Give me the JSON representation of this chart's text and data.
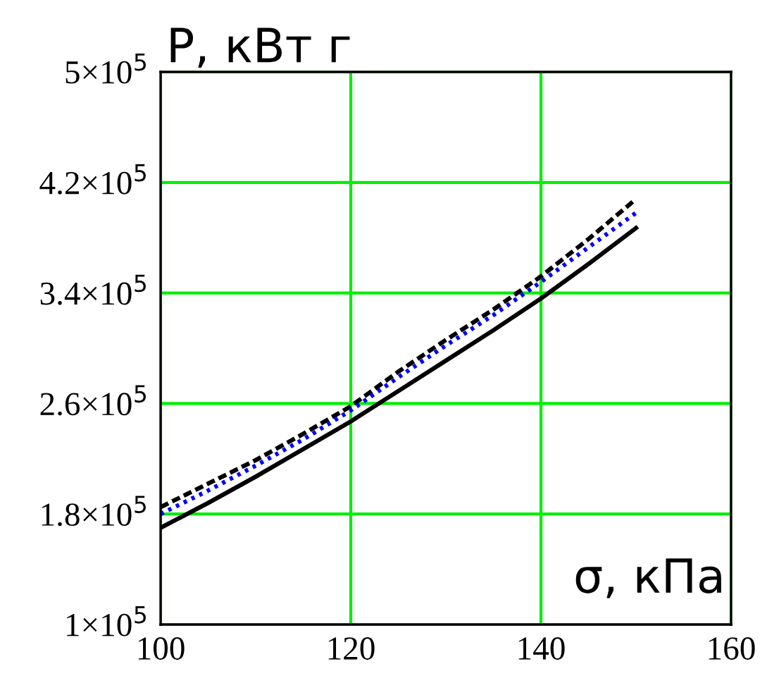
{
  "chart_data": {
    "type": "line",
    "xlabel": "σ, кПа",
    "ylabel": "P, кВт г",
    "x": [
      100,
      105,
      110,
      115,
      120,
      125,
      130,
      135,
      140,
      145,
      150
    ],
    "series": [
      {
        "color": "#000000",
        "line_style": "solid",
        "values": [
          170000,
          188000,
          207000,
          227000,
          247000,
          269000,
          291000,
          313000,
          336000,
          361000,
          387000
        ]
      },
      {
        "color": "#000000",
        "line_style": "dashed",
        "values": [
          185000,
          202000,
          219000,
          238000,
          258000,
          283000,
          306000,
          328000,
          352000,
          379000,
          408000
        ]
      },
      {
        "color": "#0000ff",
        "line_style": "dotted",
        "values": [
          180000,
          197000,
          215000,
          234000,
          255000,
          279000,
          302000,
          324000,
          348000,
          373000,
          398000
        ]
      }
    ],
    "xlim": [
      100,
      160
    ],
    "xticks": [
      100,
      120,
      140,
      160
    ],
    "ylim": [
      100000,
      500000
    ],
    "yticks": [
      {
        "value": 100000,
        "label": "1×10$^{5}$"
      },
      {
        "value": 180000,
        "label": "1.8×10$^{5}$"
      },
      {
        "value": 260000,
        "label": "2.6×10$^{5}$"
      },
      {
        "value": 340000,
        "label": "3.4×10$^{5}$"
      },
      {
        "value": 420000,
        "label": "4.2×10$^{5}$"
      },
      {
        "value": 500000,
        "label": "5×10$^{5}$"
      }
    ],
    "grid": true,
    "marker": "none"
  }
}
